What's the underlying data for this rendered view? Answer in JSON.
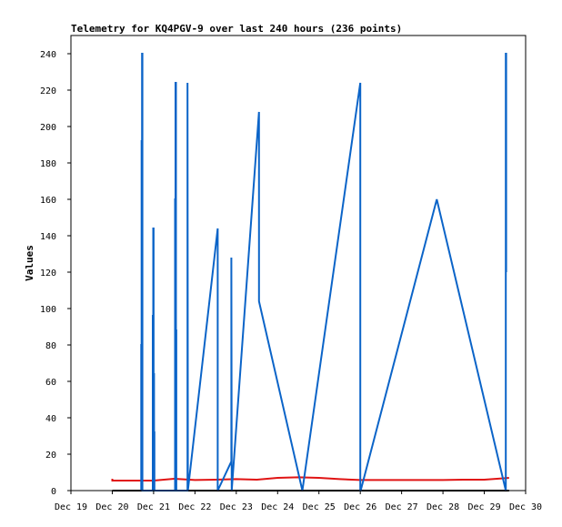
{
  "chart_data": {
    "type": "line",
    "title": "Telemetry for KQ4PGV-9 over last 240 hours (236 points)",
    "xlabel": "",
    "ylabel": "Values",
    "x_tick_labels": [
      "Dec 19",
      "Dec 20",
      "Dec 21",
      "Dec 22",
      "Dec 23",
      "Dec 24",
      "Dec 25",
      "Dec 26",
      "Dec 27",
      "Dec 28",
      "Dec 29",
      "Dec 30"
    ],
    "xlim_days": [
      19,
      30
    ],
    "ylim": [
      0,
      250
    ],
    "y_ticks": [
      0,
      20,
      40,
      60,
      80,
      100,
      120,
      140,
      160,
      180,
      200,
      220,
      240
    ],
    "grid": false,
    "colors": {
      "series1": "#0b64c8",
      "series2": "#e01414",
      "series3": "#000000"
    },
    "series": [
      {
        "key": "series1",
        "x_days": [
          20.7,
          20.7,
          20.71,
          20.71,
          20.72,
          20.72,
          20.73,
          20.73,
          20.98,
          20.98,
          20.99,
          20.99,
          21.0,
          21.0,
          21.01,
          21.01,
          21.02,
          21.02,
          21.52,
          21.52,
          21.53,
          21.53,
          21.54,
          21.54,
          21.55,
          21.55,
          21.82,
          21.82,
          21.83,
          22.55,
          22.55,
          22.88,
          22.88,
          22.89,
          23.55,
          23.55,
          24.6,
          26.0,
          26.0,
          26.01,
          27.85,
          29.52,
          29.52,
          29.53,
          29.53
        ],
        "values": [
          0,
          80,
          80,
          192,
          192,
          240,
          240,
          0,
          0,
          96,
          96,
          144,
          144,
          64,
          64,
          32,
          32,
          0,
          0,
          160,
          160,
          224,
          224,
          88,
          88,
          0,
          0,
          224,
          0,
          144,
          0,
          16,
          128,
          0,
          208,
          104,
          0,
          224,
          0,
          0,
          160,
          0,
          240,
          240,
          120
        ]
      },
      {
        "key": "series2",
        "x_days": [
          20.0,
          20.0,
          20.5,
          21.0,
          21.5,
          22.0,
          22.5,
          23.0,
          23.5,
          24.0,
          24.5,
          25.0,
          25.5,
          26.0,
          26.5,
          27.0,
          27.5,
          28.0,
          28.5,
          29.0,
          29.5,
          29.6
        ],
        "values": [
          6.5,
          5.5,
          5.5,
          5.5,
          6.5,
          5.8,
          6.0,
          6.3,
          6.0,
          7.0,
          7.3,
          7.0,
          6.3,
          5.8,
          5.8,
          5.8,
          5.8,
          5.8,
          6.0,
          6.0,
          6.8,
          7.0
        ]
      },
      {
        "key": "series3",
        "x_days": [
          20.0,
          29.6
        ],
        "values": [
          0,
          0
        ]
      }
    ]
  }
}
